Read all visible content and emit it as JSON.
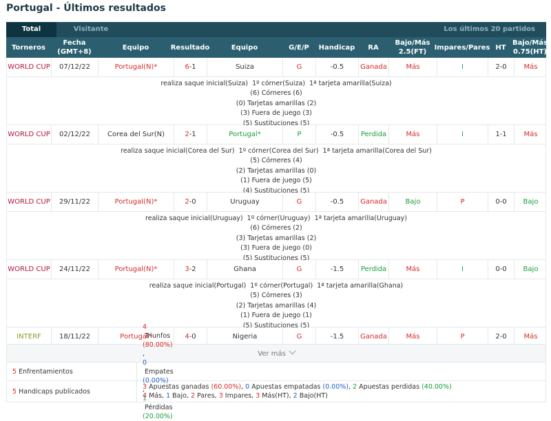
{
  "title": "Portugal - Últimos resultados",
  "tabs": {
    "total": "Total",
    "visitante": "Visitante",
    "right": "Los últimos 20 partidos"
  },
  "headers": [
    "Torneros",
    "Fecha\n(GMT+8)",
    "Equipo",
    "Resultado",
    "Equipo",
    "G/E/P",
    "Handicap",
    "RA",
    "Bajo/Más\n2.5(FT)",
    "Impares/Pares",
    "HT",
    "Bajo/Más\n0.75(HT)"
  ],
  "matches": [
    {
      "torneo": "WORLD CUP",
      "fecha": "07/12/22",
      "local": "Portugal(N)*",
      "res_a": "6",
      "res_b": "-1",
      "visitante": "Suiza",
      "gep": "G",
      "handicap": "-0.5",
      "ra": "Ganada",
      "bm25": "Más",
      "ip": "I",
      "ht": "2-0",
      "bm075": "Más",
      "detail": [
        "realiza saque inicial(Suiza)  1º córner(Suiza)  1ª tarjeta amarilla(Suiza)",
        "(6) Córneres (6)",
        "(0) Tarjetas amarillas (2)",
        "(3) Fuera de juego (3)",
        "(5) Sustituciones (5)"
      ]
    },
    {
      "torneo": "WORLD CUP",
      "fecha": "02/12/22",
      "local": "Corea del Sur(N)",
      "res_a": "2",
      "res_b": "-1",
      "visitante": "Portugal*",
      "gep": "P",
      "handicap": "-0.5",
      "ra": "Perdida",
      "bm25": "Más",
      "ip": "I",
      "ht": "1-1",
      "bm075": "Más",
      "detail": [
        "realiza saque inicial(Corea del Sur)  1º córner(Corea del Sur)  1ª tarjeta amarilla(Corea del Sur)",
        "(5) Córneres (4)",
        "(2) Tarjetas amarillas (0)",
        "(1) Fuera de juego (5)",
        "(4) Sustituciones (5)"
      ]
    },
    {
      "torneo": "WORLD CUP",
      "fecha": "29/11/22",
      "local": "Portugal(N)*",
      "res_a": "2",
      "res_b": "-0",
      "visitante": "Uruguay",
      "gep": "G",
      "handicap": "-0.5",
      "ra": "Ganada",
      "bm25": "Bajo",
      "ip": "P",
      "ht": "0-0",
      "bm075": "Bajo",
      "detail": [
        "realiza saque inicial(Uruguay)  1º córner(Uruguay)  1ª tarjeta amarilla(Uruguay)",
        "(6) Córneres (2)",
        "(3) Tarjetas amarillas (2)",
        "(3) Fuera de juego (0)",
        "(5) Sustituciones (5)"
      ]
    },
    {
      "torneo": "WORLD CUP",
      "fecha": "24/11/22",
      "local": "Portugal(N)*",
      "res_a": "3",
      "res_b": "-2",
      "visitante": "Ghana",
      "gep": "G",
      "handicap": "-1.5",
      "ra": "Perdida",
      "bm25": "Más",
      "ip": "I",
      "ht": "0-0",
      "bm075": "Bajo",
      "detail": [
        "realiza saque inicial(Portugal)  1º córner(Portugal)  1ª tarjeta amarilla(Ghana)",
        "(5) Córneres (3)",
        "(2) Tarjetas amarillas (4)",
        "(1) Fuera de juego (1)",
        "(5) Sustituciones (5)"
      ]
    },
    {
      "torneo": "INTERF",
      "fecha": "18/11/22",
      "local": "Portugal*",
      "res_a": "4",
      "res_b": "-0",
      "visitante": "Nigeria",
      "gep": "G",
      "handicap": "-1.5",
      "ra": "Ganada",
      "bm25": "Más",
      "ip": "P",
      "ht": "2-0",
      "bm075": "Más",
      "detail": []
    }
  ],
  "ver_mas": "Ver más",
  "summary": {
    "enfrentamientos_label": "5 Enfrentamientos",
    "enf_line": [
      {
        "t": "4",
        "c": "red"
      },
      {
        "t": " Triunfos ",
        "c": "navy"
      },
      {
        "t": "(80.00%)",
        "c": "red"
      },
      {
        "t": ", ",
        "c": "navy"
      },
      {
        "t": "0",
        "c": "blue"
      },
      {
        "t": " Empates ",
        "c": "navy"
      },
      {
        "t": "(0.00%)",
        "c": "blue"
      },
      {
        "t": ", ",
        "c": "navy"
      },
      {
        "t": "1",
        "c": "green"
      },
      {
        "t": " Pérdidas ",
        "c": "navy"
      },
      {
        "t": "(20.00%)",
        "c": "green"
      }
    ],
    "handicaps_label": "5 Handicaps publicados",
    "hand_line1": [
      {
        "t": "3",
        "c": "red"
      },
      {
        "t": " Apuestas ganadas ",
        "c": "navy"
      },
      {
        "t": "(60.00%)",
        "c": "red"
      },
      {
        "t": ", ",
        "c": "navy"
      },
      {
        "t": "0",
        "c": "blue"
      },
      {
        "t": " Apuestas empatadas ",
        "c": "navy"
      },
      {
        "t": "(0.00%)",
        "c": "blue"
      },
      {
        "t": ", ",
        "c": "navy"
      },
      {
        "t": "2",
        "c": "green"
      },
      {
        "t": " Apuestas perdidas ",
        "c": "navy"
      },
      {
        "t": "(40.00%)",
        "c": "green"
      }
    ],
    "hand_line2": [
      {
        "t": "4",
        "c": "red"
      },
      {
        "t": " Más, ",
        "c": "navy"
      },
      {
        "t": "1",
        "c": "blue"
      },
      {
        "t": " Bajo, ",
        "c": "navy"
      },
      {
        "t": "2",
        "c": "red"
      },
      {
        "t": " Pares, ",
        "c": "navy"
      },
      {
        "t": "3",
        "c": "red"
      },
      {
        "t": " Impares, ",
        "c": "navy"
      },
      {
        "t": "3",
        "c": "red"
      },
      {
        "t": " Más(HT), ",
        "c": "navy"
      },
      {
        "t": "2",
        "c": "blue"
      },
      {
        "t": " Bajo(HT)",
        "c": "navy"
      }
    ]
  },
  "colors": {
    "header_bg": "#2b5f70",
    "tab_active": "#0f3441",
    "win": "#d62b2b",
    "loss": "#199e3a",
    "neutral": "#2262c6"
  }
}
